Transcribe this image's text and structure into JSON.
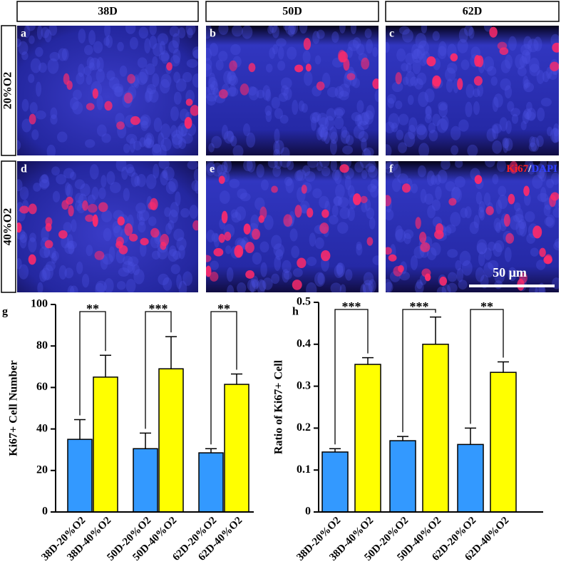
{
  "column_headers": [
    "38D",
    "50D",
    "62D"
  ],
  "row_headers": [
    "20%O2",
    "40%O2"
  ],
  "panel_letters": [
    "a",
    "b",
    "c",
    "d",
    "e",
    "f"
  ],
  "legend": {
    "marker1": "Ki67",
    "separator": "/",
    "marker2": "DAPI"
  },
  "scale_bar": "50 µm",
  "chart_data": [
    {
      "type": "bar",
      "panel": "g",
      "ylabel": "Ki67+ Cell Number",
      "categories": [
        "38D-20%O2",
        "38D-40%O2",
        "50D-20%O2",
        "50D-40%O2",
        "62D-20%O2",
        "62D-40%O2"
      ],
      "values": [
        35,
        65,
        30.5,
        69,
        28.5,
        61.5
      ],
      "errors": [
        9.5,
        10.5,
        7.5,
        15.5,
        2,
        5
      ],
      "colors": [
        "#3399ff",
        "#ffff00",
        "#3399ff",
        "#ffff00",
        "#3399ff",
        "#ffff00"
      ],
      "significance": [
        "**",
        "***",
        "**"
      ],
      "ylim": [
        0,
        100
      ],
      "yticks": [
        0,
        20,
        40,
        60,
        80,
        100
      ]
    },
    {
      "type": "bar",
      "panel": "h",
      "ylabel": "Ratio of Ki67+ Cell",
      "categories": [
        "38D-20%O2",
        "38D-40%O2",
        "50D-20%O2",
        "50D-40%O2",
        "62D-20%O2",
        "62D-40%O2"
      ],
      "values": [
        0.143,
        0.352,
        0.17,
        0.4,
        0.161,
        0.333
      ],
      "errors": [
        0.008,
        0.016,
        0.01,
        0.065,
        0.039,
        0.025
      ],
      "colors": [
        "#3399ff",
        "#ffff00",
        "#3399ff",
        "#ffff00",
        "#3399ff",
        "#ffff00"
      ],
      "significance": [
        "***",
        "***",
        "**"
      ],
      "ylim": [
        0,
        0.5
      ],
      "yticks": [
        0,
        0.1,
        0.2,
        0.3,
        0.4,
        0.5
      ]
    }
  ]
}
